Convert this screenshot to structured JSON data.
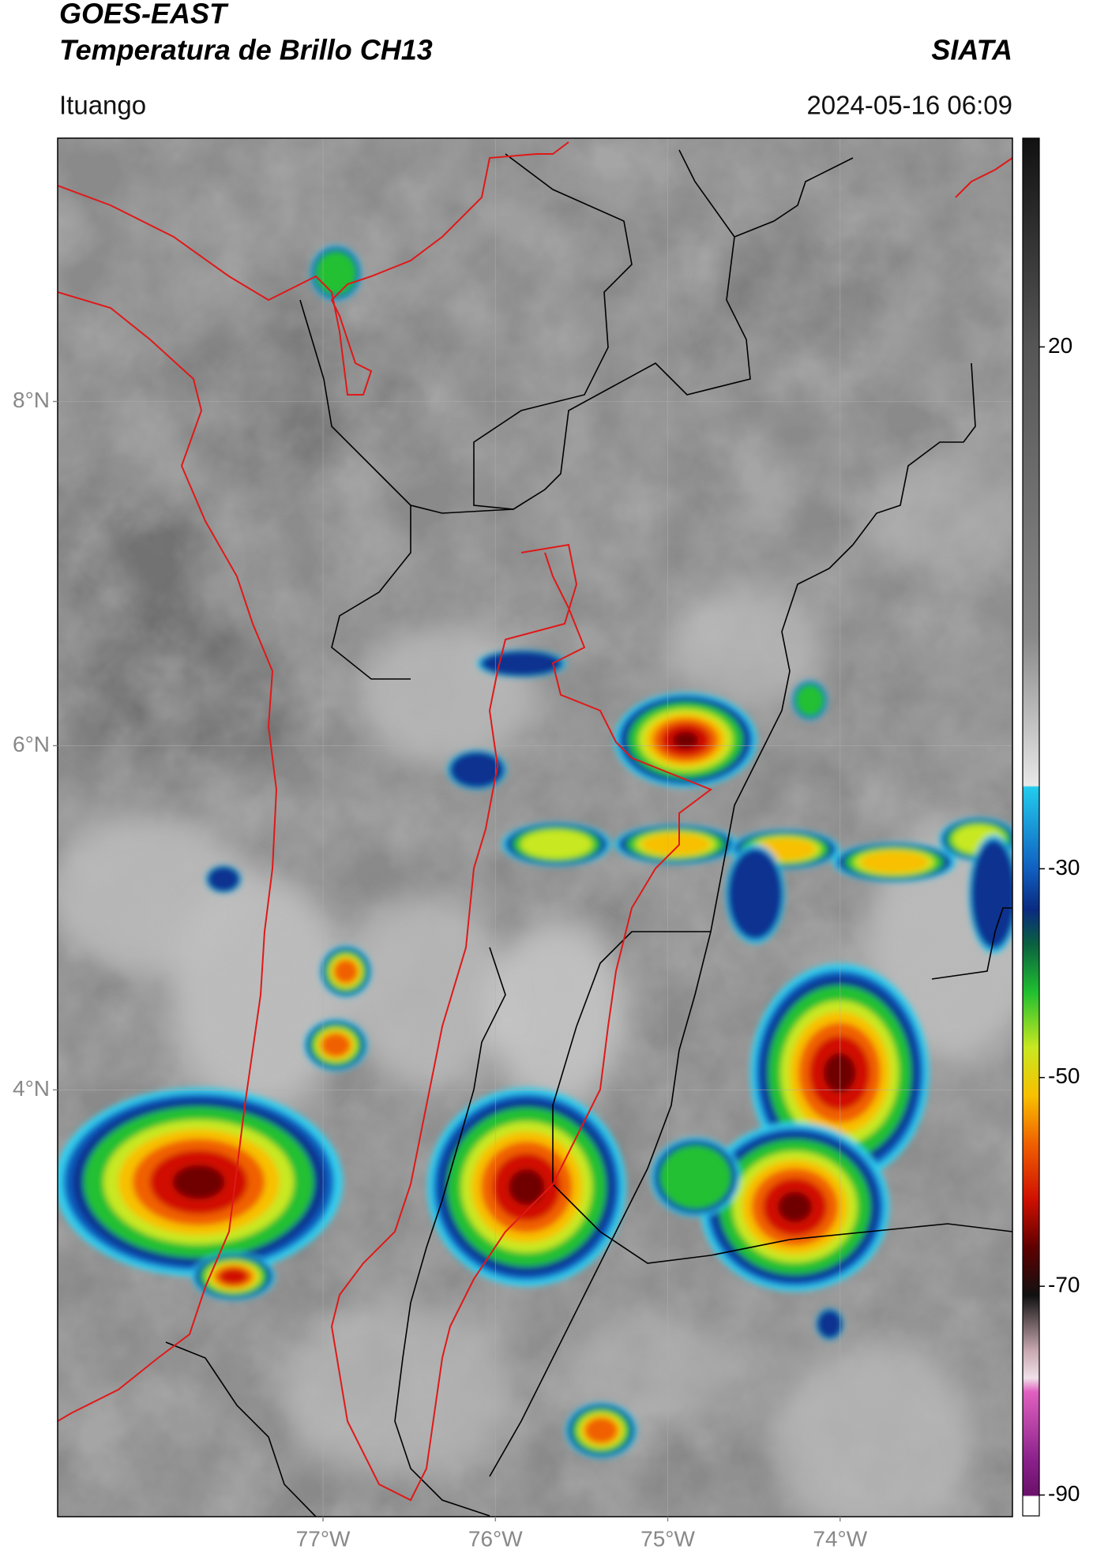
{
  "header": {
    "title": "GOES-EAST",
    "subtitle": "Temperatura de Brillo CH13",
    "brand": "SIATA",
    "location": "Ituango",
    "datetime": "2024-05-16 06:09"
  },
  "map": {
    "lon_range": [
      -78.54,
      -73.0
    ],
    "lat_range": [
      1.52,
      9.53
    ],
    "lon_ticks": [
      {
        "value": -77,
        "label": "77°W"
      },
      {
        "value": -76,
        "label": "76°W"
      },
      {
        "value": -75,
        "label": "75°W"
      },
      {
        "value": -74,
        "label": "74°W"
      }
    ],
    "lat_ticks": [
      {
        "value": 8,
        "label": "8°N"
      },
      {
        "value": 6,
        "label": "6°N"
      },
      {
        "value": 4,
        "label": "4°N"
      }
    ]
  },
  "colorbar": {
    "range": [
      40,
      -92
    ],
    "ticks": [
      20,
      -30,
      -50,
      -70,
      -90
    ]
  }
}
